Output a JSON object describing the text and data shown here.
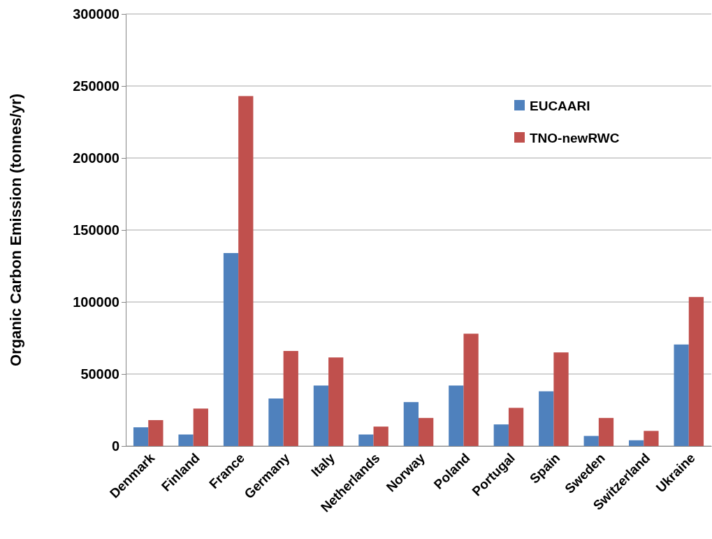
{
  "chart_data": {
    "type": "bar",
    "ylabel": "Organic Carbon Emission (tonnes/yr)",
    "categories": [
      "Denmark",
      "Finland",
      "France",
      "Germany",
      "Italy",
      "Netherlands",
      "Norway",
      "Poland",
      "Portugal",
      "Spain",
      "Sweden",
      "Switzerland",
      "Ukraine"
    ],
    "series": [
      {
        "name": "EUCAARI",
        "color": "#4f81bd",
        "values": [
          13000,
          8000,
          134000,
          33000,
          42000,
          8000,
          30500,
          42000,
          15000,
          38000,
          7000,
          4000,
          70500
        ]
      },
      {
        "name": "TNO-newRWC",
        "color": "#c0504d",
        "values": [
          18000,
          26000,
          243000,
          66000,
          61500,
          13500,
          19500,
          78000,
          26500,
          65000,
          19500,
          10500,
          103500
        ]
      }
    ],
    "ylim": [
      0,
      300000
    ],
    "yticks": [
      0,
      50000,
      100000,
      150000,
      200000,
      250000,
      300000
    ],
    "grid": "y",
    "legend": "top right"
  }
}
